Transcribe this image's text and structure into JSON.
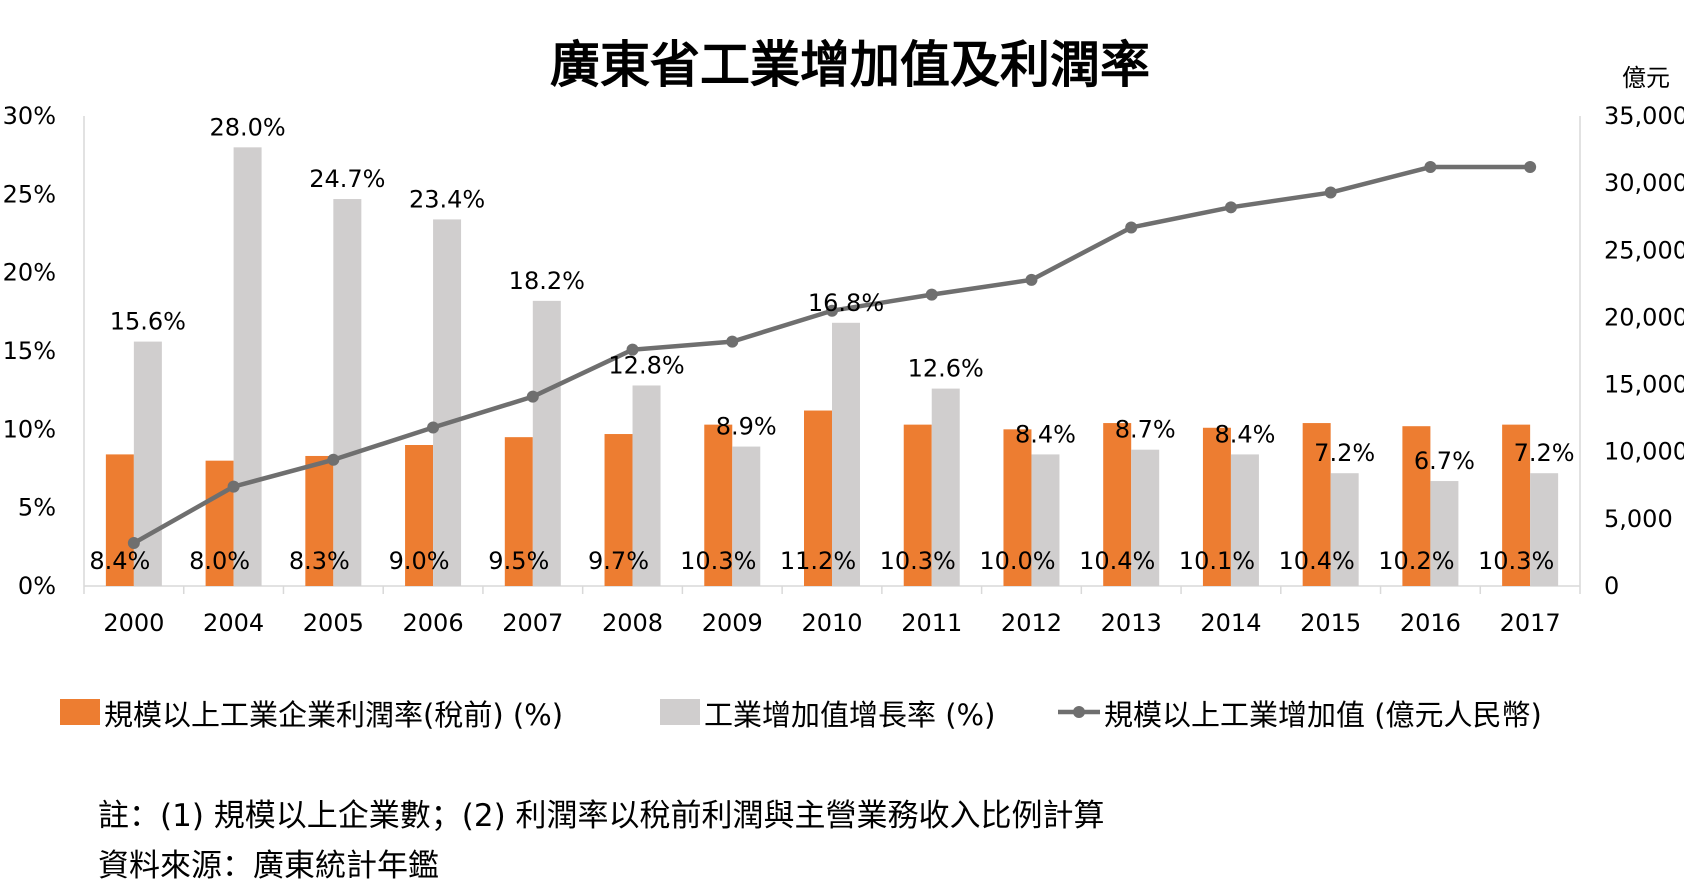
{
  "chart_data": {
    "type": "bar",
    "title": "廣東省工業增加值及利潤率",
    "right_axis_unit": "億元",
    "categories": [
      "2000",
      "2004",
      "2005",
      "2006",
      "2007",
      "2008",
      "2009",
      "2010",
      "2011",
      "2012",
      "2013",
      "2014",
      "2015",
      "2016",
      "2017"
    ],
    "left_ylim": [
      0,
      30
    ],
    "left_ticks": [
      "0%",
      "5%",
      "10%",
      "15%",
      "20%",
      "25%",
      "30%"
    ],
    "right_ylim": [
      0,
      35000
    ],
    "right_ticks": [
      "0",
      "5,000",
      "10,000",
      "15,000",
      "20,000",
      "25,000",
      "30,000",
      "35,000"
    ],
    "series": [
      {
        "name": "規模以上工業企業利潤率(稅前) (%)",
        "type": "bar",
        "axis": "left",
        "color": "#ED7D31",
        "values": [
          8.4,
          8.0,
          8.3,
          9.0,
          9.5,
          9.7,
          10.3,
          11.2,
          10.3,
          10.0,
          10.4,
          10.1,
          10.4,
          10.2,
          10.3
        ],
        "labels": [
          "8.4%",
          "8.0%",
          "8.3%",
          "9.0%",
          "9.5%",
          "9.7%",
          "10.3%",
          "11.2%",
          "10.3%",
          "10.0%",
          "10.4%",
          "10.1%",
          "10.4%",
          "10.2%",
          "10.3%"
        ]
      },
      {
        "name": "工業增加值增長率 (%)",
        "type": "bar",
        "axis": "left",
        "color": "#D0CECE",
        "values": [
          15.6,
          28.0,
          24.7,
          23.4,
          18.2,
          12.8,
          8.9,
          16.8,
          12.6,
          8.4,
          8.7,
          8.4,
          7.2,
          6.7,
          7.2
        ],
        "labels": [
          "15.6%",
          "28.0%",
          "24.7%",
          "23.4%",
          "18.2%",
          "12.8%",
          "8.9%",
          "16.8%",
          "12.6%",
          "8.4%",
          "8.7%",
          "8.4%",
          "7.2%",
          "6.7%",
          "7.2%"
        ]
      },
      {
        "name": "規模以上工業增加值 (億元人民幣)",
        "type": "line",
        "axis": "right",
        "color": "#6F6F6F",
        "values": [
          3200,
          7400,
          9400,
          11800,
          14100,
          17600,
          18200,
          20500,
          21700,
          22800,
          26700,
          28200,
          29300,
          31200,
          31200
        ]
      }
    ]
  },
  "notes": {
    "note1": "註：(1) 規模以上企業數；(2) 利潤率以稅前利潤與主營業務收入比例計算",
    "source": "資料來源：廣東統計年鑑"
  }
}
